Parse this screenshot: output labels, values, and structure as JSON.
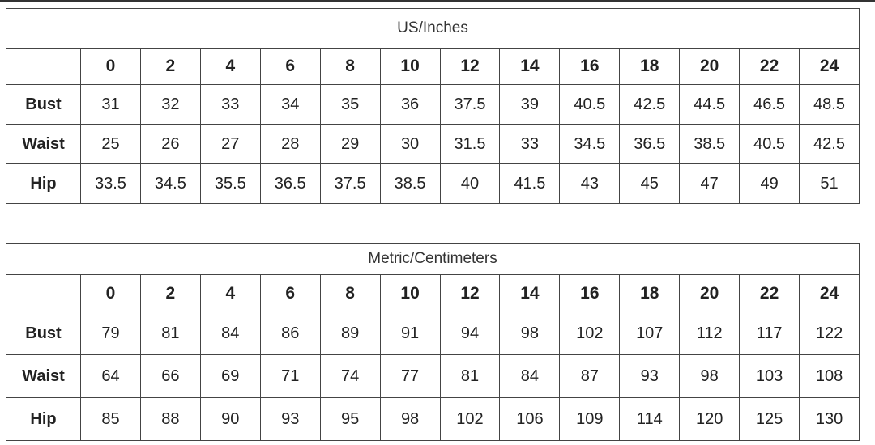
{
  "sizes": [
    "0",
    "2",
    "4",
    "6",
    "8",
    "10",
    "12",
    "14",
    "16",
    "18",
    "20",
    "22",
    "24"
  ],
  "tables": [
    {
      "title": "US/Inches",
      "rows": [
        {
          "label": "Bust",
          "values": [
            "31",
            "32",
            "33",
            "34",
            "35",
            "36",
            "37.5",
            "39",
            "40.5",
            "42.5",
            "44.5",
            "46.5",
            "48.5"
          ]
        },
        {
          "label": "Waist",
          "values": [
            "25",
            "26",
            "27",
            "28",
            "29",
            "30",
            "31.5",
            "33",
            "34.5",
            "36.5",
            "38.5",
            "40.5",
            "42.5"
          ]
        },
        {
          "label": "Hip",
          "values": [
            "33.5",
            "34.5",
            "35.5",
            "36.5",
            "37.5",
            "38.5",
            "40",
            "41.5",
            "43",
            "45",
            "47",
            "49",
            "51"
          ]
        }
      ]
    },
    {
      "title": "Metric/Centimeters",
      "rows": [
        {
          "label": "Bust",
          "values": [
            "79",
            "81",
            "84",
            "86",
            "89",
            "91",
            "94",
            "98",
            "102",
            "107",
            "112",
            "117",
            "122"
          ]
        },
        {
          "label": "Waist",
          "values": [
            "64",
            "66",
            "69",
            "71",
            "74",
            "77",
            "81",
            "84",
            "87",
            "93",
            "98",
            "103",
            "108"
          ]
        },
        {
          "label": "Hip",
          "values": [
            "85",
            "88",
            "90",
            "93",
            "95",
            "98",
            "102",
            "106",
            "109",
            "114",
            "120",
            "125",
            "130"
          ]
        }
      ]
    }
  ]
}
